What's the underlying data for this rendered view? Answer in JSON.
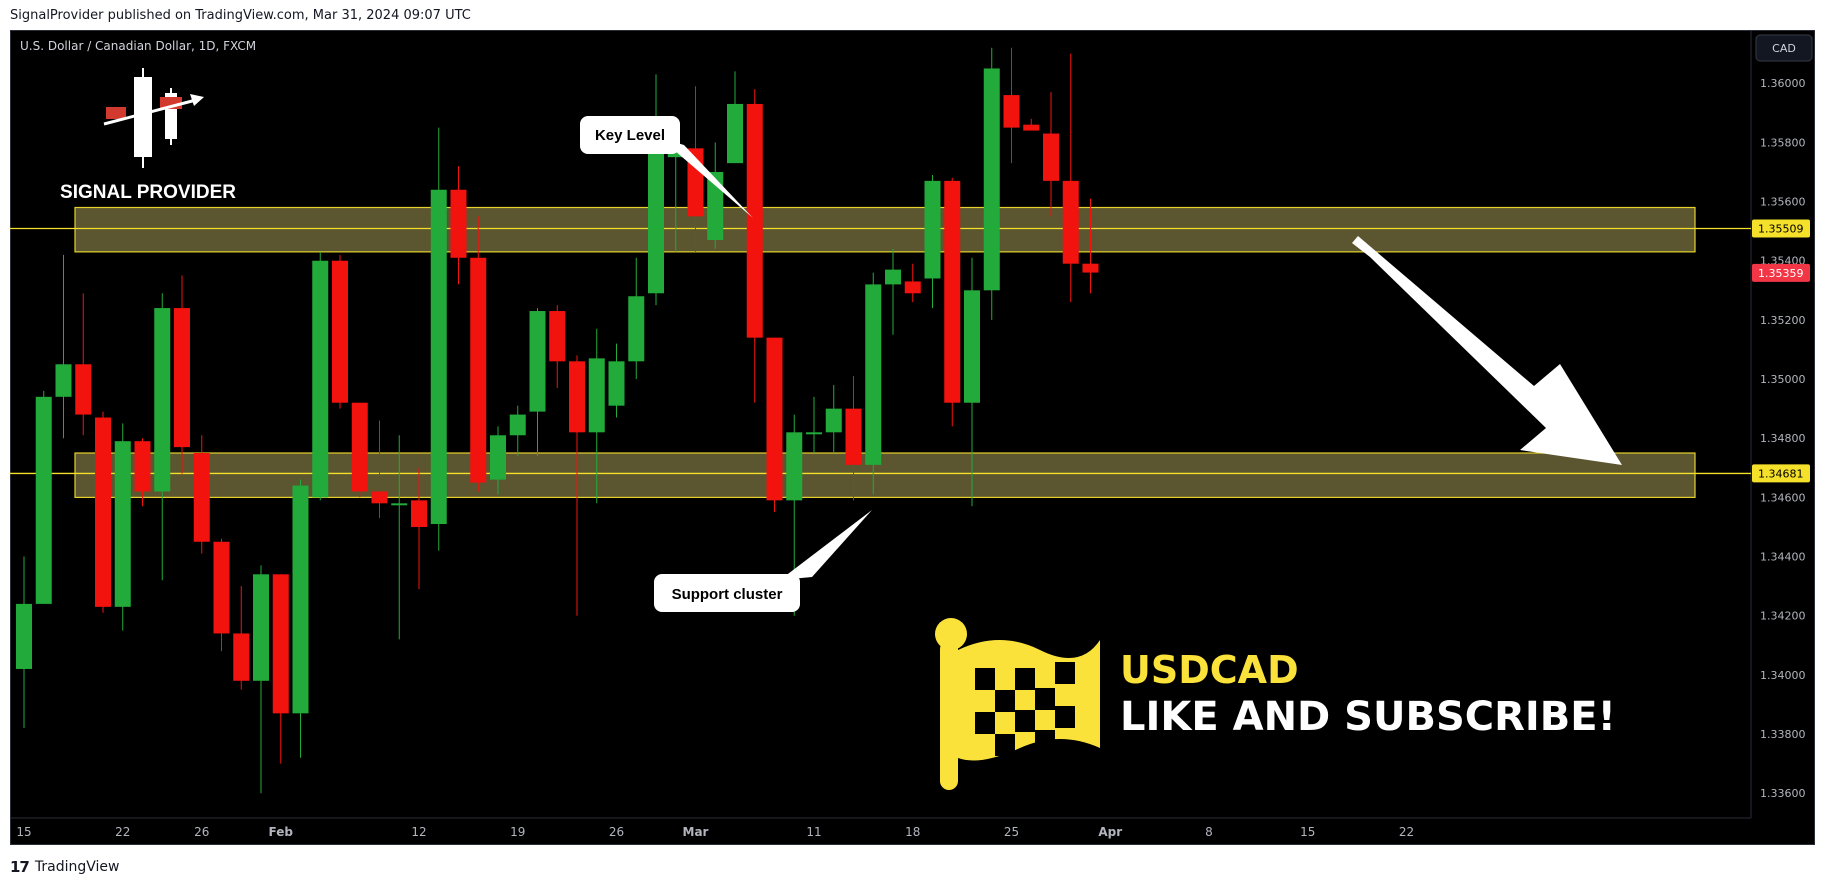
{
  "header": {
    "published_line": "SignalProvider published on TradingView.com, Mar 31, 2024 09:07 UTC"
  },
  "footer": {
    "brand": "TradingView"
  },
  "legend": {
    "symbol_line": "U.S. Dollar / Canadian Dollar, 1D, FXCM"
  },
  "currency_button": "CAD",
  "logo": {
    "text": "SIGNAL PROVIDER"
  },
  "annotations": {
    "key_level": "Key Level",
    "support": "Support cluster",
    "ticker": "USDCAD",
    "cta": "LIKE AND SUBSCRIBE!"
  },
  "colors": {
    "up": "#22ab3a",
    "down": "#f2130f",
    "zone_fill": "#726a3c",
    "zone_border": "#e5d22c",
    "level_line": "#f5e02a",
    "price_tag": "#f23645",
    "flag": "#fbe23b",
    "background": "#000000"
  },
  "chart_data": {
    "type": "candlestick",
    "symbol": "USDCAD",
    "interval": "1D",
    "ylim": [
      1.3355,
      1.3618
    ],
    "y_ticks": [
      "1.36000",
      "1.35800",
      "1.35600",
      "1.35400",
      "1.35200",
      "1.35000",
      "1.34800",
      "1.34600",
      "1.34400",
      "1.34200",
      "1.34000",
      "1.33800",
      "1.33600"
    ],
    "x_ticks": [
      {
        "label": "15",
        "i": 0
      },
      {
        "label": "22",
        "i": 5
      },
      {
        "label": "26",
        "i": 9
      },
      {
        "label": "Feb",
        "i": 13
      },
      {
        "label": "12",
        "i": 20
      },
      {
        "label": "19",
        "i": 25
      },
      {
        "label": "26",
        "i": 30
      },
      {
        "label": "Mar",
        "i": 34
      },
      {
        "label": "11",
        "i": 40
      },
      {
        "label": "18",
        "i": 45
      },
      {
        "label": "25",
        "i": 50
      },
      {
        "label": "Apr",
        "i": 55
      },
      {
        "label": "8",
        "i": 60
      },
      {
        "label": "15",
        "i": 65
      },
      {
        "label": "22",
        "i": 70
      }
    ],
    "candles": [
      {
        "d": "Jan 15",
        "o": 1.3402,
        "h": 1.344,
        "l": 1.3382,
        "c": 1.3424
      },
      {
        "d": "Jan 16",
        "o": 1.3424,
        "h": 1.3496,
        "l": 1.3424,
        "c": 1.3494
      },
      {
        "d": "Jan 17",
        "o": 1.3494,
        "h": 1.3542,
        "l": 1.348,
        "c": 1.3505
      },
      {
        "d": "Jan 18",
        "o": 1.3505,
        "h": 1.3529,
        "l": 1.3481,
        "c": 1.3488
      },
      {
        "d": "Jan 19",
        "o": 1.3487,
        "h": 1.3489,
        "l": 1.3421,
        "c": 1.3423
      },
      {
        "d": "Jan 22",
        "o": 1.3423,
        "h": 1.3485,
        "l": 1.3415,
        "c": 1.3479
      },
      {
        "d": "Jan 23",
        "o": 1.3479,
        "h": 1.348,
        "l": 1.3457,
        "c": 1.3462
      },
      {
        "d": "Jan 24",
        "o": 1.3462,
        "h": 1.3529,
        "l": 1.3432,
        "c": 1.3524
      },
      {
        "d": "Jan 25",
        "o": 1.3524,
        "h": 1.3535,
        "l": 1.3468,
        "c": 1.3477
      },
      {
        "d": "Jan 26",
        "o": 1.3475,
        "h": 1.3481,
        "l": 1.3441,
        "c": 1.3445
      },
      {
        "d": "Jan 29",
        "o": 1.3445,
        "h": 1.3446,
        "l": 1.3408,
        "c": 1.3414
      },
      {
        "d": "Jan 30",
        "o": 1.3414,
        "h": 1.343,
        "l": 1.3395,
        "c": 1.3398
      },
      {
        "d": "Jan 31",
        "o": 1.3398,
        "h": 1.3437,
        "l": 1.336,
        "c": 1.3434
      },
      {
        "d": "Feb 1",
        "o": 1.3434,
        "h": 1.3434,
        "l": 1.337,
        "c": 1.3387
      },
      {
        "d": "Feb 2",
        "o": 1.3387,
        "h": 1.3466,
        "l": 1.3372,
        "c": 1.3464
      },
      {
        "d": "Feb 5",
        "o": 1.346,
        "h": 1.3543,
        "l": 1.3459,
        "c": 1.354
      },
      {
        "d": "Feb 6",
        "o": 1.354,
        "h": 1.3542,
        "l": 1.349,
        "c": 1.3492
      },
      {
        "d": "Feb 7",
        "o": 1.3492,
        "h": 1.3492,
        "l": 1.346,
        "c": 1.3462
      },
      {
        "d": "Feb 8",
        "o": 1.3462,
        "h": 1.3486,
        "l": 1.3453,
        "c": 1.3458
      },
      {
        "d": "Feb 9",
        "o": 1.3458,
        "h": 1.3481,
        "l": 1.3412,
        "c": 1.3458
      },
      {
        "d": "Feb 12",
        "o": 1.3459,
        "h": 1.347,
        "l": 1.3429,
        "c": 1.345
      },
      {
        "d": "Feb 13",
        "o": 1.3451,
        "h": 1.3585,
        "l": 1.3442,
        "c": 1.3564
      },
      {
        "d": "Feb 14",
        "o": 1.3564,
        "h": 1.3572,
        "l": 1.3532,
        "c": 1.3541
      },
      {
        "d": "Feb 15",
        "o": 1.3541,
        "h": 1.3555,
        "l": 1.3462,
        "c": 1.3465
      },
      {
        "d": "Feb 16",
        "o": 1.3466,
        "h": 1.3484,
        "l": 1.3461,
        "c": 1.3481
      },
      {
        "d": "Feb 19",
        "o": 1.3481,
        "h": 1.3491,
        "l": 1.3474,
        "c": 1.3488
      },
      {
        "d": "Feb 20",
        "o": 1.3489,
        "h": 1.3524,
        "l": 1.3474,
        "c": 1.3523
      },
      {
        "d": "Feb 21",
        "o": 1.3523,
        "h": 1.3525,
        "l": 1.3497,
        "c": 1.3506
      },
      {
        "d": "Feb 22",
        "o": 1.3506,
        "h": 1.3508,
        "l": 1.342,
        "c": 1.3482
      },
      {
        "d": "Feb 23",
        "o": 1.3482,
        "h": 1.3517,
        "l": 1.3458,
        "c": 1.3507
      },
      {
        "d": "Feb 26",
        "o": 1.3491,
        "h": 1.3512,
        "l": 1.3487,
        "c": 1.3506
      },
      {
        "d": "Feb 27",
        "o": 1.3506,
        "h": 1.3541,
        "l": 1.35,
        "c": 1.3528
      },
      {
        "d": "Feb 28",
        "o": 1.3529,
        "h": 1.3603,
        "l": 1.3525,
        "c": 1.3577
      },
      {
        "d": "Feb 29",
        "o": 1.3575,
        "h": 1.3577,
        "l": 1.3543,
        "c": 1.3577
      },
      {
        "d": "Mar 1",
        "o": 1.3578,
        "h": 1.3599,
        "l": 1.3543,
        "c": 1.3555
      },
      {
        "d": "Mar 4",
        "o": 1.3547,
        "h": 1.358,
        "l": 1.3544,
        "c": 1.357
      },
      {
        "d": "Mar 5",
        "o": 1.3573,
        "h": 1.3604,
        "l": 1.3573,
        "c": 1.3593
      },
      {
        "d": "Mar 6",
        "o": 1.3593,
        "h": 1.3598,
        "l": 1.3492,
        "c": 1.3514
      },
      {
        "d": "Mar 7",
        "o": 1.3514,
        "h": 1.3514,
        "l": 1.3455,
        "c": 1.3459
      },
      {
        "d": "Mar 8",
        "o": 1.3459,
        "h": 1.3488,
        "l": 1.342,
        "c": 1.3482
      },
      {
        "d": "Mar 11",
        "o": 1.3482,
        "h": 1.3494,
        "l": 1.3475,
        "c": 1.3482
      },
      {
        "d": "Mar 12",
        "o": 1.3482,
        "h": 1.3498,
        "l": 1.3475,
        "c": 1.349
      },
      {
        "d": "Mar 13",
        "o": 1.349,
        "h": 1.3501,
        "l": 1.3459,
        "c": 1.3471
      },
      {
        "d": "Mar 14",
        "o": 1.3471,
        "h": 1.3536,
        "l": 1.3461,
        "c": 1.3532
      },
      {
        "d": "Mar 15",
        "o": 1.3532,
        "h": 1.3544,
        "l": 1.3515,
        "c": 1.3537
      },
      {
        "d": "Mar 18",
        "o": 1.3533,
        "h": 1.3539,
        "l": 1.3526,
        "c": 1.3529
      },
      {
        "d": "Mar 19",
        "o": 1.3534,
        "h": 1.3569,
        "l": 1.3524,
        "c": 1.3567
      },
      {
        "d": "Mar 20",
        "o": 1.3567,
        "h": 1.3568,
        "l": 1.3484,
        "c": 1.3492
      },
      {
        "d": "Mar 21",
        "o": 1.3492,
        "h": 1.3541,
        "l": 1.3457,
        "c": 1.353
      },
      {
        "d": "Mar 22",
        "o": 1.353,
        "h": 1.3612,
        "l": 1.352,
        "c": 1.3605
      },
      {
        "d": "Mar 25",
        "o": 1.3596,
        "h": 1.3612,
        "l": 1.3573,
        "c": 1.3585
      },
      {
        "d": "Mar 26",
        "o": 1.3586,
        "h": 1.3588,
        "l": 1.3584,
        "c": 1.3584
      },
      {
        "d": "Mar 27",
        "o": 1.3583,
        "h": 1.3597,
        "l": 1.3555,
        "c": 1.3567
      },
      {
        "d": "Mar 28",
        "o": 1.3567,
        "h": 1.361,
        "l": 1.3526,
        "c": 1.3539
      },
      {
        "d": "Mar 29",
        "o": 1.3539,
        "h": 1.3561,
        "l": 1.3529,
        "c": 1.3536
      }
    ],
    "levels": [
      {
        "price": 1.35509,
        "label": "1.35509"
      },
      {
        "price": 1.34681,
        "label": "1.34681"
      }
    ],
    "zones": [
      {
        "top": 1.3558,
        "bottom": 1.3543
      },
      {
        "top": 1.3475,
        "bottom": 1.346
      }
    ],
    "last_price": {
      "value": 1.35359,
      "label": "1.35359"
    }
  }
}
